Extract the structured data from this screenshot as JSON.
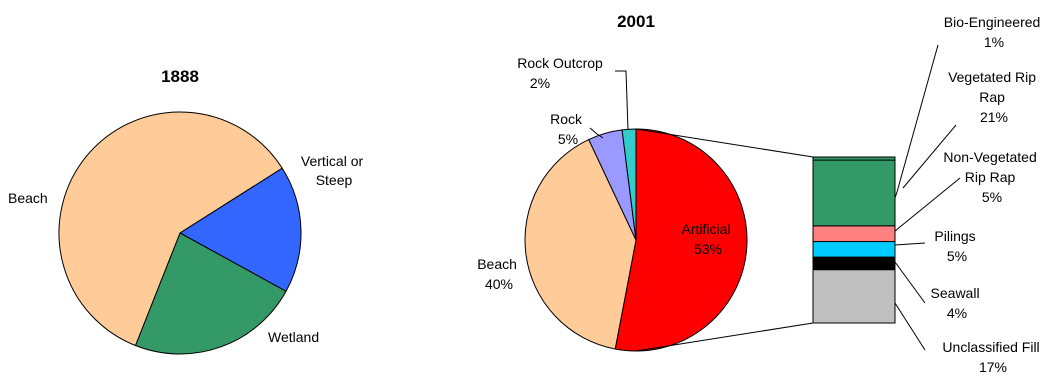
{
  "chart_data": [
    {
      "type": "pie",
      "title": "1888",
      "slices": [
        {
          "label": "Beach",
          "value": 60,
          "color": "#FFCC99"
        },
        {
          "label": "Vertical or Steep",
          "value": 17,
          "color": "#3366FF"
        },
        {
          "label": "Wetland",
          "value": 23,
          "color": "#339966"
        }
      ]
    },
    {
      "type": "pie",
      "title": "2001",
      "slices": [
        {
          "label": "Artificial",
          "value": 53,
          "display": "53%",
          "color": "#FF0000"
        },
        {
          "label": "Beach",
          "value": 40,
          "display": "40%",
          "color": "#FFCC99"
        },
        {
          "label": "Rock",
          "value": 5,
          "display": "5%",
          "color": "#9999FF"
        },
        {
          "label": "Rock Outcrop",
          "value": 2,
          "display": "2%",
          "color": "#33CCCC"
        }
      ],
      "breakdown": {
        "of": "Artificial",
        "segments": [
          {
            "label": "Bio-Engineered",
            "value": 1,
            "display": "1%",
            "color": "#339966"
          },
          {
            "label": "Vegetated Rip Rap",
            "value": 21,
            "display": "21%",
            "color": "#339966"
          },
          {
            "label": "Non-Vegetated Rip Rap",
            "value": 5,
            "display": "5%",
            "color": "#FF8080"
          },
          {
            "label": "Pilings",
            "value": 5,
            "display": "5%",
            "color": "#00CCFF"
          },
          {
            "label": "Seawall",
            "value": 4,
            "display": "4%",
            "color": "#000000"
          },
          {
            "label": "Unclassified Fill",
            "value": 17,
            "display": "17%",
            "color": "#C0C0C0"
          }
        ]
      }
    }
  ]
}
